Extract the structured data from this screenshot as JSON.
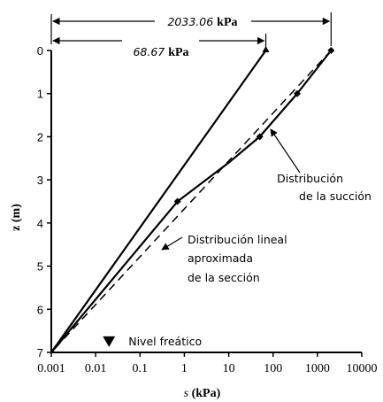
{
  "chart_data": {
    "type": "line",
    "x_scale": "log",
    "xlim": [
      0.001,
      10000
    ],
    "ylim": [
      0,
      7
    ],
    "y_inverted": true,
    "grid": false,
    "x_ticks": [
      "0.001",
      "0.01",
      "0.1",
      "1",
      "10",
      "100",
      "1000",
      "10000"
    ],
    "y_ticks": [
      "0",
      "1",
      "2",
      "3",
      "4",
      "5",
      "6",
      "7"
    ],
    "xlabel": {
      "var": "s",
      "unit": "(kPa)"
    },
    "ylabel": "z (m)",
    "series": [
      {
        "style": "solid",
        "marker": "triangle",
        "points": [
          [
            68.67,
            0
          ],
          [
            0.001,
            7
          ]
        ]
      },
      {
        "name": "Distribución de la succión",
        "style": "solid",
        "marker": "diamond",
        "points": [
          [
            2033.06,
            0
          ],
          [
            350,
            1
          ],
          [
            50,
            2
          ],
          [
            10,
            2.6
          ],
          [
            0.7,
            3.5
          ],
          [
            0.001,
            7
          ]
        ]
      },
      {
        "name": "Distribución lineal aproximada de la sección",
        "style": "dashed",
        "points": [
          [
            2033.06,
            0
          ],
          [
            0.001,
            7
          ]
        ]
      }
    ],
    "annotations": {
      "dim_total": {
        "value": "2033.06",
        "unit": "kPa"
      },
      "dim_partial": {
        "value": "68.67",
        "unit": "kPa"
      },
      "suction_label": [
        "Distribución",
        "de la succión"
      ],
      "linear_label": [
        "Distribución lineal",
        "aproximada",
        "de la sección"
      ],
      "water_table": {
        "label": "Nivel freático",
        "x": 0.02,
        "z": 6.75
      }
    }
  }
}
